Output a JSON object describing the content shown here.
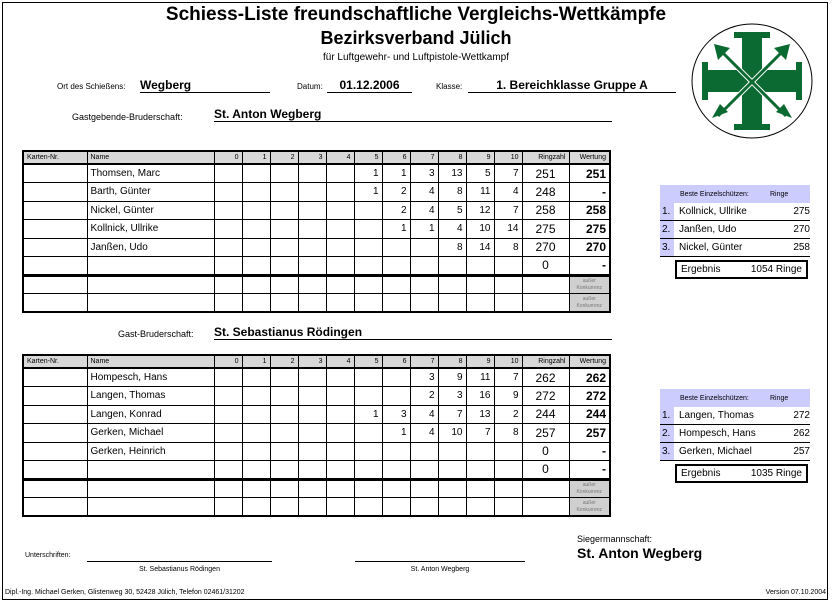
{
  "title": "Schiess-Liste freundschaftliche Vergleichs-Wettkämpfe",
  "subtitle": "Bezirksverband Jülich",
  "subtitle2": "für Luftgewehr- und Luftpistole-Wettkampf",
  "info": {
    "ort_label": "Ort des Schießens:",
    "ort": "Wegberg",
    "datum_label": "Datum:",
    "datum": "01.12.2006",
    "klasse_label": "Klasse:",
    "klasse": "1. Bereichklasse Gruppe A"
  },
  "columns": [
    "Karten-Nr.",
    "Name",
    "0",
    "1",
    "2",
    "3",
    "4",
    "5",
    "6",
    "7",
    "8",
    "9",
    "10",
    "Ringzahl",
    "Wertung"
  ],
  "ak_label": "außer Konkurrenz",
  "host": {
    "label": "Gastgebende-Bruderschaft:",
    "name": "St. Anton Wegberg",
    "rows": [
      {
        "name": "Thomsen, Marc",
        "counts": [
          "",
          "",
          "",
          "",
          "",
          "1",
          "1",
          "3",
          "13",
          "5",
          "7"
        ],
        "ring": "251",
        "wertung": "251"
      },
      {
        "name": "Barth, Günter",
        "counts": [
          "",
          "",
          "",
          "",
          "",
          "1",
          "2",
          "4",
          "8",
          "11",
          "4"
        ],
        "ring": "248",
        "wertung": "-"
      },
      {
        "name": "Nickel, Günter",
        "counts": [
          "",
          "",
          "",
          "",
          "",
          "",
          "2",
          "4",
          "5",
          "12",
          "7"
        ],
        "ring": "258",
        "wertung": "258"
      },
      {
        "name": "Kollnick, Ullrike",
        "counts": [
          "",
          "",
          "",
          "",
          "",
          "",
          "1",
          "1",
          "4",
          "10",
          "14"
        ],
        "ring": "275",
        "wertung": "275"
      },
      {
        "name": "Janßen, Udo",
        "counts": [
          "",
          "",
          "",
          "",
          "",
          "",
          "",
          "",
          "8",
          "14",
          "8"
        ],
        "ring": "270",
        "wertung": "270"
      },
      {
        "name": "",
        "counts": [
          "",
          "",
          "",
          "",
          "",
          "",
          "",
          "",
          "",
          "",
          ""
        ],
        "ring": "0",
        "wertung": "-"
      }
    ],
    "best": {
      "header": "Beste Einzelschützen:",
      "ringe_header": "Ringe",
      "items": [
        {
          "n": "1.",
          "name": "Kollnick, Ullrike",
          "ringe": "275"
        },
        {
          "n": "2.",
          "name": "Janßen, Udo",
          "ringe": "270"
        },
        {
          "n": "3.",
          "name": "Nickel, Günter",
          "ringe": "258"
        }
      ],
      "ergebnis_label": "Ergebnis",
      "ergebnis": "1054 Ringe"
    }
  },
  "guest": {
    "label": "Gast-Bruderschaft:",
    "name": "St. Sebastianus Rödingen",
    "rows": [
      {
        "name": "Hompesch, Hans",
        "counts": [
          "",
          "",
          "",
          "",
          "",
          "",
          "",
          "3",
          "9",
          "11",
          "7"
        ],
        "ring": "262",
        "wertung": "262"
      },
      {
        "name": "Langen, Thomas",
        "counts": [
          "",
          "",
          "",
          "",
          "",
          "",
          "",
          "2",
          "3",
          "16",
          "9"
        ],
        "ring": "272",
        "wertung": "272"
      },
      {
        "name": "Langen, Konrad",
        "counts": [
          "",
          "",
          "",
          "",
          "",
          "1",
          "3",
          "4",
          "7",
          "13",
          "2"
        ],
        "ring": "244",
        "wertung": "244"
      },
      {
        "name": "Gerken, Michael",
        "counts": [
          "",
          "",
          "",
          "",
          "",
          "",
          "1",
          "4",
          "10",
          "7",
          "8"
        ],
        "ring": "257",
        "wertung": "257"
      },
      {
        "name": "Gerken, Heinrich",
        "counts": [
          "",
          "",
          "",
          "",
          "",
          "",
          "",
          "",
          "",
          "",
          ""
        ],
        "ring": "0",
        "wertung": "-"
      },
      {
        "name": "",
        "counts": [
          "",
          "",
          "",
          "",
          "",
          "",
          "",
          "",
          "",
          "",
          ""
        ],
        "ring": "0",
        "wertung": "-"
      }
    ],
    "best": {
      "header": "Beste Einzelschützen:",
      "ringe_header": "Ringe",
      "items": [
        {
          "n": "1.",
          "name": "Langen, Thomas",
          "ringe": "272"
        },
        {
          "n": "2.",
          "name": "Hompesch, Hans",
          "ringe": "262"
        },
        {
          "n": "3.",
          "name": "Gerken, Michael",
          "ringe": "257"
        }
      ],
      "ergebnis_label": "Ergebnis",
      "ergebnis": "1035 Ringe"
    }
  },
  "footer": {
    "unterschriften": "Unterschriften:",
    "sig1": "St. Sebastianus Rödingen",
    "sig2": "St. Anton Wegberg",
    "sieger_label": "Siegermannschaft:",
    "sieger": "St. Anton Wegberg",
    "credit": "Dipl.-Ing. Michael Gerken, Glistenweg 30, 52428 Jülich, Telefon 02461/31202",
    "version": "Version 07.10.2004"
  },
  "colors": {
    "logo_green": "#0a6a32",
    "best_header": "#ccccff",
    "header_gray": "#d8d8d8"
  }
}
